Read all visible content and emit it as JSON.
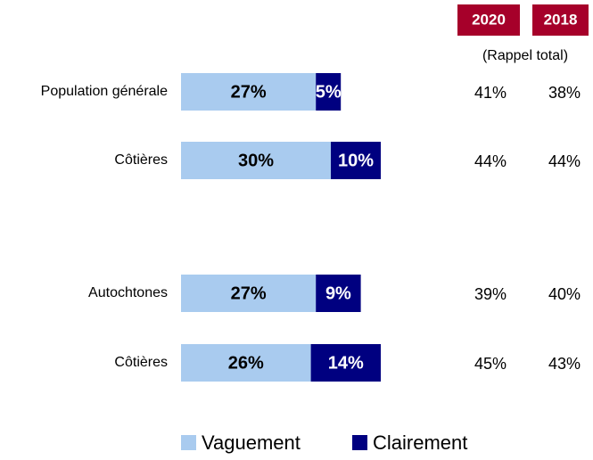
{
  "chart_data": {
    "type": "stacked-bar-horizontal",
    "categories": [
      "Population générale",
      "Côtières",
      "Autochtones",
      "Côtières"
    ],
    "series": [
      {
        "name": "Vaguement",
        "color": "#a9cbef",
        "values": [
          27,
          30,
          27,
          26
        ],
        "value_labels": [
          "27%",
          "30%",
          "27%",
          "26%"
        ]
      },
      {
        "name": "Clairement",
        "color": "#000080",
        "values": [
          5,
          10,
          9,
          14
        ],
        "value_labels": [
          "5%",
          "10%",
          "9%",
          "14%"
        ]
      }
    ],
    "columns_subtitle": "(Rappel total)",
    "columns": [
      {
        "name": "2020",
        "color": "#a6002a",
        "values": [
          41,
          44,
          39,
          45
        ],
        "value_labels": [
          "41%",
          "44%",
          "39%",
          "45%"
        ]
      },
      {
        "name": "2018",
        "color": "#a6002a",
        "values": [
          38,
          44,
          40,
          43
        ],
        "value_labels": [
          "38%",
          "44%",
          "40%",
          "43%"
        ]
      }
    ],
    "legend": "bottom"
  }
}
